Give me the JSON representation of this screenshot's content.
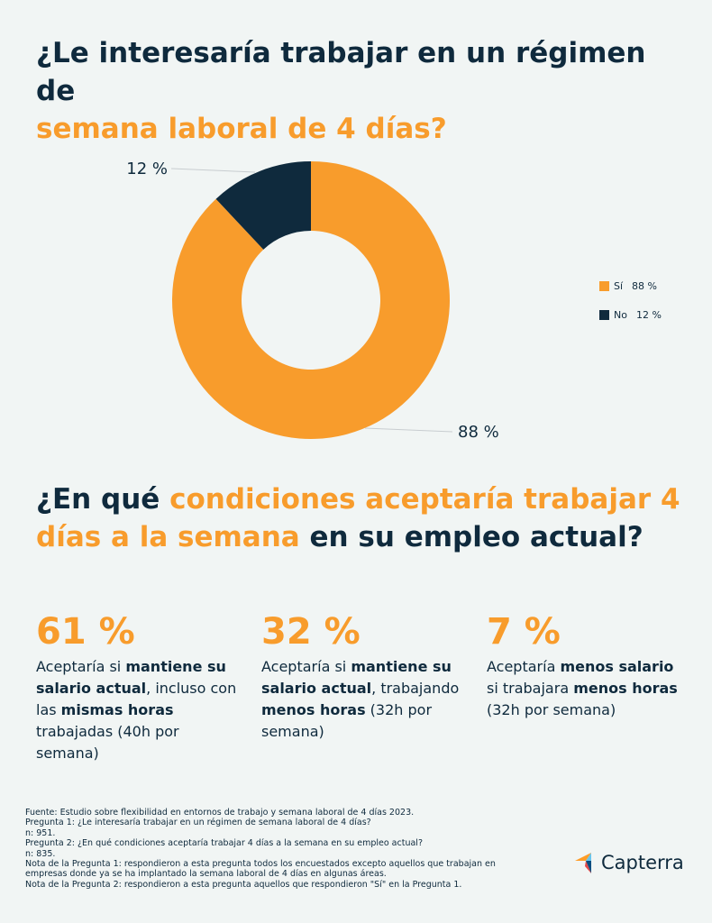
{
  "header": {
    "title_part1": "¿Le interesaría trabajar en un régimen de",
    "title_part2": "semana laboral de 4 días?"
  },
  "chart_data": {
    "type": "pie",
    "donut": true,
    "categories": [
      "Sí",
      "No"
    ],
    "values": [
      88,
      12
    ],
    "colors": [
      "#f89c2c",
      "#0f2a3d"
    ],
    "data_labels": [
      "88 %",
      "12 %"
    ],
    "legend": {
      "position": "right",
      "entries": [
        {
          "label": "Sí",
          "value": "88 %",
          "color": "#f89c2c"
        },
        {
          "label": "No",
          "value": "12 %",
          "color": "#0f2a3d"
        }
      ]
    }
  },
  "section2": {
    "title_part1": "¿En qué ",
    "title_part2": "condiciones aceptaría trabajar 4 días a la semana",
    "title_part3": " en su empleo actual?"
  },
  "stats": [
    {
      "pct": "61 %",
      "t1": "Aceptaría si ",
      "b1": "mantiene su salario actual",
      "t2": ", incluso con las ",
      "b2": "mismas horas",
      "t3": " trabajadas (40h por semana)"
    },
    {
      "pct": "32 %",
      "t1": "Aceptaría si ",
      "b1": "mantiene su salario actual",
      "t2": ", trabajando ",
      "b2": "menos horas",
      "t3": " (32h por semana)"
    },
    {
      "pct": "7 %",
      "t1": "Aceptaría ",
      "b1": "menos salario",
      "t2": " si trabajara ",
      "b2": "menos horas",
      "t3": " (32h por semana)"
    }
  ],
  "footnotes": [
    "Fuente: Estudio sobre flexibilidad en entornos de trabajo y semana laboral de 4 días 2023.",
    "Pregunta 1: ¿Le interesaría trabajar en un régimen de semana laboral de 4 días?",
    "n: 951.",
    "Pregunta 2: ¿En qué condiciones aceptaría trabajar 4 días a la semana en su empleo actual?",
    "n: 835.",
    "Nota de la Pregunta 1: respondieron a esta pregunta todos los encuestados excepto aquellos que trabajan en",
    "empresas donde ya se ha implantado la semana laboral de 4 días en algunas áreas.",
    "Nota de la Pregunta 2: respondieron a esta pregunta aquellos que respondieron \"Sí\" en la Pregunta 1."
  ],
  "logo": {
    "text": "Capterra",
    "colors": [
      "#ff9d28",
      "#68c5ed",
      "#044d80",
      "#e54747"
    ]
  }
}
